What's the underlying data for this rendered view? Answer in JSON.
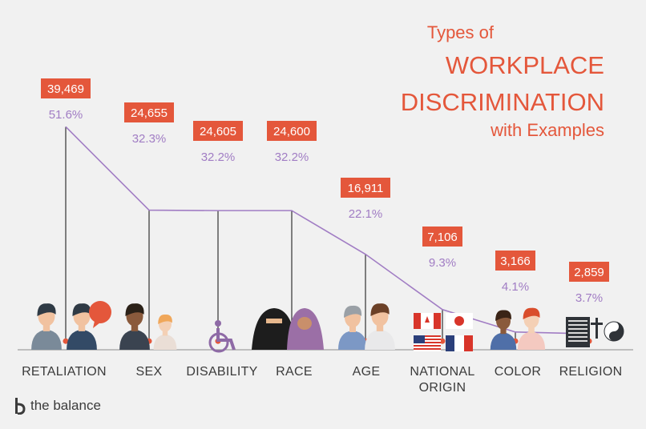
{
  "title": {
    "line1": "Types of",
    "line2": "WORKPLACE",
    "line3": "DISCRIMINATION",
    "line4": "with Examples"
  },
  "brand": {
    "name": "the balance"
  },
  "colors": {
    "accent": "#e4573b",
    "line": "#a17dc4",
    "stem": "#333333",
    "background": "#f1f1f1"
  },
  "chart_data": {
    "type": "line",
    "title": "Types of WORKPLACE DISCRIMINATION with Examples",
    "categories": [
      [
        "RETALIATION"
      ],
      [
        "SEX"
      ],
      [
        "DISABILITY"
      ],
      [
        "RACE"
      ],
      [
        "AGE"
      ],
      [
        "NATIONAL",
        "ORIGIN"
      ],
      [
        "COLOR"
      ],
      [
        "RELIGION"
      ]
    ],
    "values": [
      39469,
      24655,
      24605,
      24600,
      16911,
      7106,
      3166,
      2859
    ],
    "value_labels": [
      "39,469",
      "24,655",
      "24,605",
      "24,600",
      "16,911",
      "7,106",
      "3,166",
      "2,859"
    ],
    "percent": [
      51.6,
      32.3,
      32.2,
      32.2,
      22.1,
      9.3,
      4.1,
      3.7
    ],
    "percent_labels": [
      "51.6%",
      "32.3%",
      "32.2%",
      "32.2%",
      "22.1%",
      "9.3%",
      "4.1%",
      "3.7%"
    ],
    "grid": false,
    "legend": "none"
  },
  "illustrations": [
    {
      "category": "RETALIATION",
      "icons": [
        "two-people-arguing-icon",
        "anger-speech-bubble-icon"
      ]
    },
    {
      "category": "SEX",
      "icons": [
        "man-icon",
        "woman-icon"
      ]
    },
    {
      "category": "DISABILITY",
      "icons": [
        "wheelchair-icon"
      ]
    },
    {
      "category": "RACE",
      "icons": [
        "niqab-woman-icon",
        "hijab-woman-icon"
      ]
    },
    {
      "category": "AGE",
      "icons": [
        "older-man-icon",
        "young-man-icon"
      ]
    },
    {
      "category": "NATIONAL ORIGIN",
      "icons": [
        "canada-flag-icon",
        "japan-flag-icon",
        "usa-flag-icon",
        "france-flag-icon"
      ]
    },
    {
      "category": "COLOR",
      "icons": [
        "dark-skinned-person-icon",
        "light-skinned-person-icon"
      ]
    },
    {
      "category": "RELIGION",
      "icons": [
        "book-icon",
        "cross-icon",
        "yin-yang-icon"
      ]
    }
  ]
}
